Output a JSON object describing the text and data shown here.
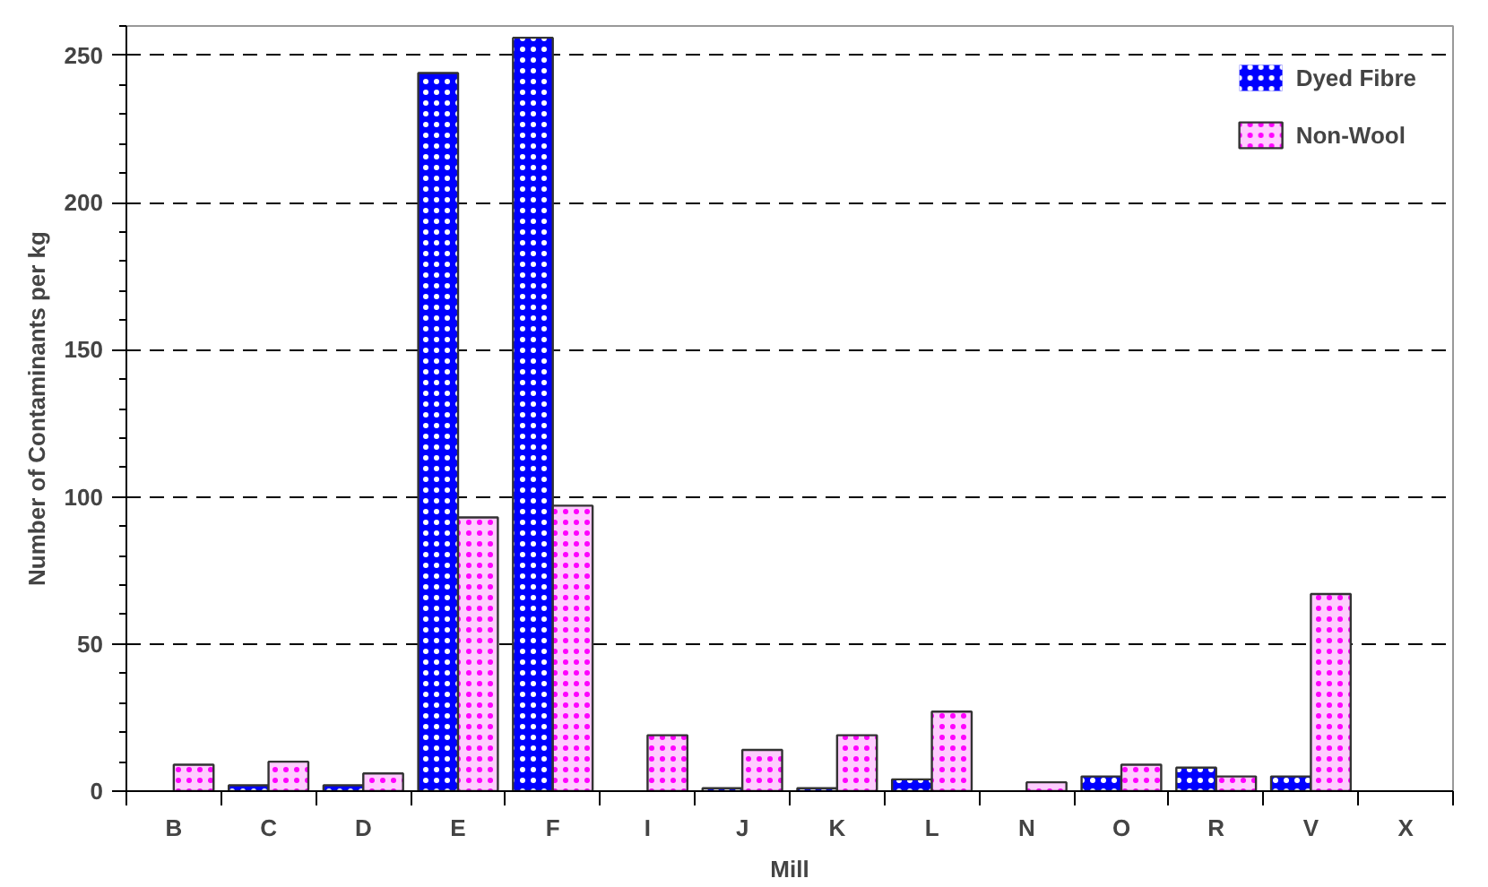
{
  "chart_data": {
    "type": "bar",
    "xlabel": "Mill",
    "ylabel": "Number of Contaminants per kg",
    "categories": [
      "B",
      "C",
      "D",
      "E",
      "F",
      "I",
      "J",
      "K",
      "L",
      "N",
      "O",
      "R",
      "V",
      "X"
    ],
    "series": [
      {
        "name": "Dyed Fibre",
        "color": "#0000ff",
        "values": [
          0,
          2,
          2,
          244,
          256,
          0,
          1,
          1,
          4,
          0,
          5,
          8,
          5,
          0
        ]
      },
      {
        "name": "Non-Wool",
        "color": "#ffccff",
        "values": [
          9,
          10,
          6,
          93,
          97,
          19,
          14,
          19,
          27,
          3,
          9,
          5,
          67,
          0
        ]
      }
    ],
    "ylim": [
      0,
      260
    ],
    "yticks": [
      0,
      50,
      100,
      150,
      200,
      250
    ],
    "grid": "y",
    "legend": "top right"
  }
}
